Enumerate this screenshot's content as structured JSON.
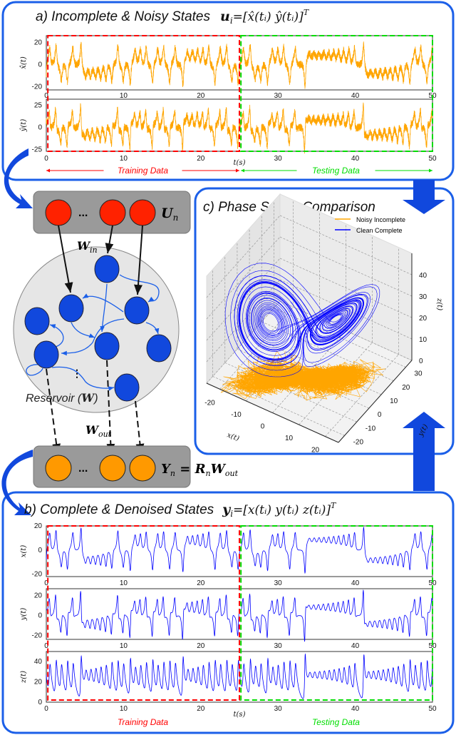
{
  "panel_a": {
    "title": "a) Incomplete & Noisy States",
    "eq_var": "u",
    "eq_sub": "i",
    "eq_rest": "=[x̂(tᵢ)  ŷ(tᵢ)]",
    "eq_sup": "T",
    "plots": [
      {
        "ylabel": "x̂(t)",
        "yticks": [
          "20",
          "0",
          "-20"
        ],
        "ytick_values": [
          20,
          0,
          -20
        ],
        "ylim": [
          -23,
          26
        ]
      },
      {
        "ylabel": "ŷ(t)",
        "yticks": [
          "25",
          "0",
          "-25"
        ],
        "ytick_values": [
          25,
          0,
          -25
        ],
        "ylim": [
          -27,
          32
        ]
      }
    ],
    "xticks": [
      "0",
      "10",
      "20",
      "30",
      "40",
      "50"
    ],
    "xlabel": "t(s)",
    "training_label": "Training Data",
    "testing_label": "Testing Data"
  },
  "network": {
    "input_label": "U",
    "input_sub": "n",
    "ellipsis": "...",
    "win_label": "W",
    "win_sub": "in",
    "reservoir_label": "Reservoir (",
    "reservoir_w": "W",
    "reservoir_close": ")",
    "vdots": "⋮",
    "wout_label": "W",
    "wout_sub": "out",
    "output_label": "Y",
    "output_sub": "n",
    "output_eq": " = ",
    "output_r": "R",
    "output_r_sub": "n",
    "output_w": "W",
    "output_w_sub": "out"
  },
  "panel_c": {
    "title": "c) Phase Space Comparison",
    "legend": [
      {
        "label": "Noisy Incomplete",
        "color": "#ffa500"
      },
      {
        "label": "Clean Complete",
        "color": "#0000ff"
      }
    ],
    "xticks": [
      "-20",
      "-10",
      "0",
      "10",
      "20"
    ],
    "yticks": [
      "-20",
      "-10",
      "0",
      "10",
      "20",
      "30"
    ],
    "zticks": [
      "0",
      "10",
      "20",
      "30",
      "40"
    ],
    "xlabel": "x(t)",
    "ylabel": "y(t)",
    "zlabel": "z(t)"
  },
  "panel_b": {
    "title": "b) Complete & Denoised States",
    "eq_var": "y",
    "eq_sub": "i",
    "eq_rest": "=[x(tᵢ)  y(tᵢ)  z(tᵢ)]",
    "eq_sup": "T",
    "plots": [
      {
        "ylabel": "x(t)",
        "yticks": [
          "20",
          "0",
          "-20"
        ],
        "ytick_values": [
          20,
          0,
          -20
        ],
        "ylim": [
          -22,
          20
        ]
      },
      {
        "ylabel": "y(t)",
        "yticks": [
          "20",
          "0",
          "-20"
        ],
        "ytick_values": [
          20,
          0,
          -20
        ],
        "ylim": [
          -24,
          27
        ]
      },
      {
        "ylabel": "z(t)",
        "yticks": [
          "40",
          "20",
          "0"
        ],
        "ytick_values": [
          40,
          20,
          0
        ],
        "ylim": [
          0,
          50
        ]
      }
    ],
    "xticks": [
      "0",
      "10",
      "20",
      "30",
      "40",
      "50"
    ],
    "xlabel": "t(s)",
    "training_label": "Training Data",
    "testing_label": "Testing Data"
  },
  "colors": {
    "frame": "#1b5fe8",
    "noisy": "#ffa500",
    "clean": "#0000ff",
    "train": "#ff0000",
    "test": "#00dd00",
    "input_node": "#ff2200",
    "res_node": "#1144dd",
    "output_node": "#ff9900"
  }
}
